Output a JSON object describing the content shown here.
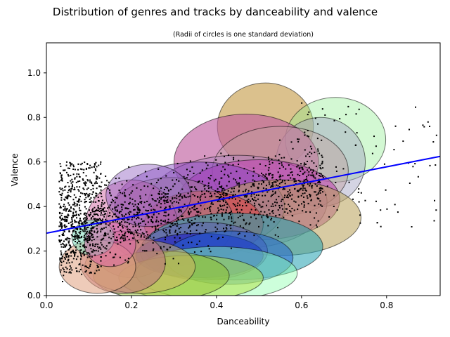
{
  "chart_data": {
    "type": "scatter",
    "title": "Distribution of genres and tracks by danceability and valence",
    "subtitle": "(Radii of circles is one standard deviation)",
    "xlabel": "Danceability",
    "ylabel": "Valence",
    "xlim": [
      0.0,
      0.926
    ],
    "ylim": [
      0.0,
      1.135
    ],
    "x_ticks": [
      "0.0",
      "0.2",
      "0.4",
      "0.6",
      "0.8"
    ],
    "y_ticks": [
      "0.0",
      "0.2",
      "0.4",
      "0.6",
      "0.8",
      "1.0"
    ],
    "grid": false,
    "trend_line": {
      "color": "#0000ff",
      "x": [
        0.0,
        0.926
      ],
      "y": [
        0.28,
        0.625
      ]
    },
    "genre_ellipses": [
      {
        "cx": 0.515,
        "cy": 0.76,
        "sx": 0.113,
        "sy": 0.195,
        "color": "#c8a050",
        "alpha": 0.65
      },
      {
        "cx": 0.68,
        "cy": 0.7,
        "sx": 0.118,
        "sy": 0.19,
        "color": "#90ee90",
        "alpha": 0.4
      },
      {
        "cx": 0.645,
        "cy": 0.6,
        "sx": 0.105,
        "sy": 0.2,
        "color": "#a0a0c0",
        "alpha": 0.45
      },
      {
        "cx": 0.47,
        "cy": 0.6,
        "sx": 0.17,
        "sy": 0.215,
        "color": "#c060a0",
        "alpha": 0.65
      },
      {
        "cx": 0.55,
        "cy": 0.56,
        "sx": 0.16,
        "sy": 0.2,
        "color": "#c0a0a0",
        "alpha": 0.45
      },
      {
        "cx": 0.45,
        "cy": 0.42,
        "sx": 0.21,
        "sy": 0.21,
        "color": "#b080c0",
        "alpha": 0.45
      },
      {
        "cx": 0.5,
        "cy": 0.43,
        "sx": 0.19,
        "sy": 0.18,
        "color": "#c040b0",
        "alpha": 0.55
      },
      {
        "cx": 0.36,
        "cy": 0.4,
        "sx": 0.2,
        "sy": 0.2,
        "color": "#8040c0",
        "alpha": 0.45
      },
      {
        "cx": 0.55,
        "cy": 0.35,
        "sx": 0.19,
        "sy": 0.17,
        "color": "#b8a058",
        "alpha": 0.55
      },
      {
        "cx": 0.37,
        "cy": 0.32,
        "sx": 0.14,
        "sy": 0.15,
        "color": "#e04040",
        "alpha": 0.55
      },
      {
        "cx": 0.29,
        "cy": 0.33,
        "sx": 0.15,
        "sy": 0.2,
        "color": "#a08090",
        "alpha": 0.45
      },
      {
        "cx": 0.2,
        "cy": 0.3,
        "sx": 0.11,
        "sy": 0.22,
        "color": "#cc5599",
        "alpha": 0.45
      },
      {
        "cx": 0.44,
        "cy": 0.22,
        "sx": 0.21,
        "sy": 0.15,
        "color": "#20a0b0",
        "alpha": 0.55
      },
      {
        "cx": 0.37,
        "cy": 0.2,
        "sx": 0.15,
        "sy": 0.13,
        "color": "#6060b0",
        "alpha": 0.55
      },
      {
        "cx": 0.36,
        "cy": 0.18,
        "sx": 0.15,
        "sy": 0.1,
        "color": "#2020c0",
        "alpha": 0.65
      },
      {
        "cx": 0.43,
        "cy": 0.17,
        "sx": 0.15,
        "sy": 0.12,
        "color": "#2060d0",
        "alpha": 0.5
      },
      {
        "cx": 0.4,
        "cy": 0.1,
        "sx": 0.19,
        "sy": 0.12,
        "color": "#90ffb0",
        "alpha": 0.45
      },
      {
        "cx": 0.34,
        "cy": 0.08,
        "sx": 0.17,
        "sy": 0.1,
        "color": "#b0e040",
        "alpha": 0.5
      },
      {
        "cx": 0.27,
        "cy": 0.09,
        "sx": 0.16,
        "sy": 0.11,
        "color": "#90c030",
        "alpha": 0.5
      },
      {
        "cx": 0.22,
        "cy": 0.13,
        "sx": 0.13,
        "sy": 0.12,
        "color": "#d0b060",
        "alpha": 0.5
      },
      {
        "cx": 0.18,
        "cy": 0.15,
        "sx": 0.1,
        "sy": 0.14,
        "color": "#c07080",
        "alpha": 0.55
      },
      {
        "cx": 0.12,
        "cy": 0.13,
        "sx": 0.09,
        "sy": 0.12,
        "color": "#e0a080",
        "alpha": 0.55
      },
      {
        "cx": 0.11,
        "cy": 0.26,
        "sx": 0.05,
        "sy": 0.08,
        "color": "#80e0c0",
        "alpha": 0.55
      },
      {
        "cx": 0.15,
        "cy": 0.23,
        "sx": 0.06,
        "sy": 0.1,
        "color": "#e060b0",
        "alpha": 0.45
      },
      {
        "cx": 0.24,
        "cy": 0.45,
        "sx": 0.1,
        "sy": 0.14,
        "color": "#9060c0",
        "alpha": 0.45
      }
    ]
  }
}
